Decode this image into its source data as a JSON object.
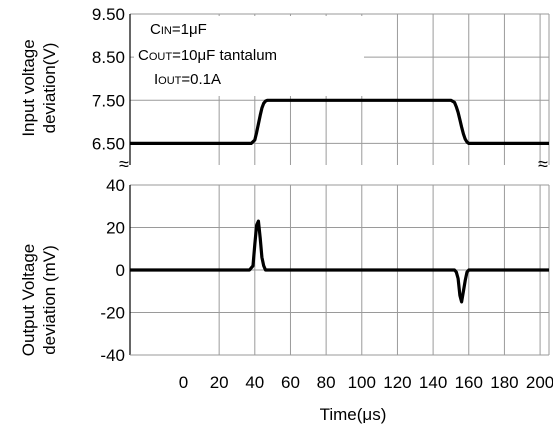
{
  "chart_data": [
    {
      "type": "line",
      "panel": "top",
      "ylabel": [
        "Input voltage",
        "deviation(V)"
      ],
      "xlim": [
        -30,
        205
      ],
      "ylim": [
        6.0,
        9.5
      ],
      "yticks": [
        6.5,
        7.5,
        8.5,
        9.5
      ],
      "ytick_labels": [
        "6.50",
        "7.50",
        "8.50",
        "9.50"
      ],
      "annotations": {
        "cin": {
          "main": "C",
          "sub": "IN",
          "rest": "=1μF"
        },
        "cout": {
          "main": "C",
          "sub": "OUT",
          "rest": "=10μF tantalum"
        },
        "iout": {
          "main": "I",
          "sub": "OUT",
          "rest": "=0.1A"
        }
      },
      "series": [
        {
          "x": [
            -30,
            38,
            40,
            41,
            42,
            43,
            44,
            45,
            46,
            47,
            48,
            150,
            152,
            153,
            154,
            155,
            156,
            157,
            158,
            159,
            160,
            205
          ],
          "y": [
            6.5,
            6.5,
            6.58,
            6.75,
            6.95,
            7.15,
            7.32,
            7.43,
            7.48,
            7.5,
            7.5,
            7.5,
            7.45,
            7.35,
            7.22,
            7.05,
            6.88,
            6.72,
            6.6,
            6.53,
            6.5,
            6.5
          ]
        }
      ]
    },
    {
      "type": "line",
      "panel": "bottom",
      "ylabel": [
        "Output Voltage",
        "deviation (mV)"
      ],
      "xlabel": "Time(μs)",
      "xlim": [
        -30,
        205
      ],
      "ylim": [
        -40,
        40
      ],
      "yticks": [
        -40,
        -20,
        0,
        20,
        40
      ],
      "ytick_labels": [
        "-40",
        "-20",
        "0",
        "20",
        "40"
      ],
      "xticks": [
        0,
        20,
        40,
        60,
        80,
        100,
        120,
        140,
        160,
        180,
        200
      ],
      "xtick_labels": [
        "0",
        "20",
        "40",
        "60",
        "80",
        "100",
        "120",
        "140",
        "160",
        "180",
        "200"
      ],
      "series": [
        {
          "x": [
            -30,
            37,
            39,
            40,
            41,
            42,
            43,
            44,
            45,
            46,
            48,
            150,
            152,
            153,
            154,
            155,
            156,
            157,
            158,
            159,
            160,
            205
          ],
          "y": [
            0,
            0,
            2,
            12,
            21,
            23,
            15,
            6,
            2,
            0,
            0,
            0,
            0,
            -1,
            -4,
            -12,
            -15,
            -10,
            -5,
            -1,
            0,
            0
          ]
        }
      ]
    }
  ],
  "break_symbol": "≈",
  "colors": {
    "grid": "#9a9a9a",
    "line": "#000000",
    "axis": "#000000"
  }
}
